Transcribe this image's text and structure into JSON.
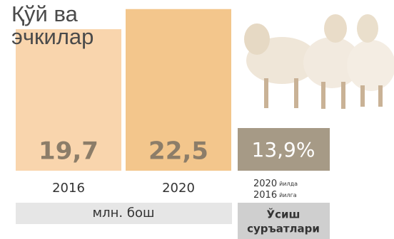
{
  "chart_data": {
    "type": "bar",
    "title": "Қўй ва эчкилар",
    "categories": [
      "2016",
      "2020"
    ],
    "values": [
      19.7,
      22.5
    ],
    "value_labels": [
      "19,7",
      "22,5"
    ],
    "colors": [
      "#f9d5ad",
      "#f3c68c"
    ],
    "unit": "млн. бош",
    "growth": {
      "value": 13.9,
      "label": "13,9%",
      "color": "#a69a86",
      "note": [
        {
          "year": "2020",
          "word": "йилда"
        },
        {
          "year": "2016",
          "word": "йилга"
        }
      ],
      "caption": [
        "Ўсиш",
        "суръатлари"
      ]
    }
  }
}
